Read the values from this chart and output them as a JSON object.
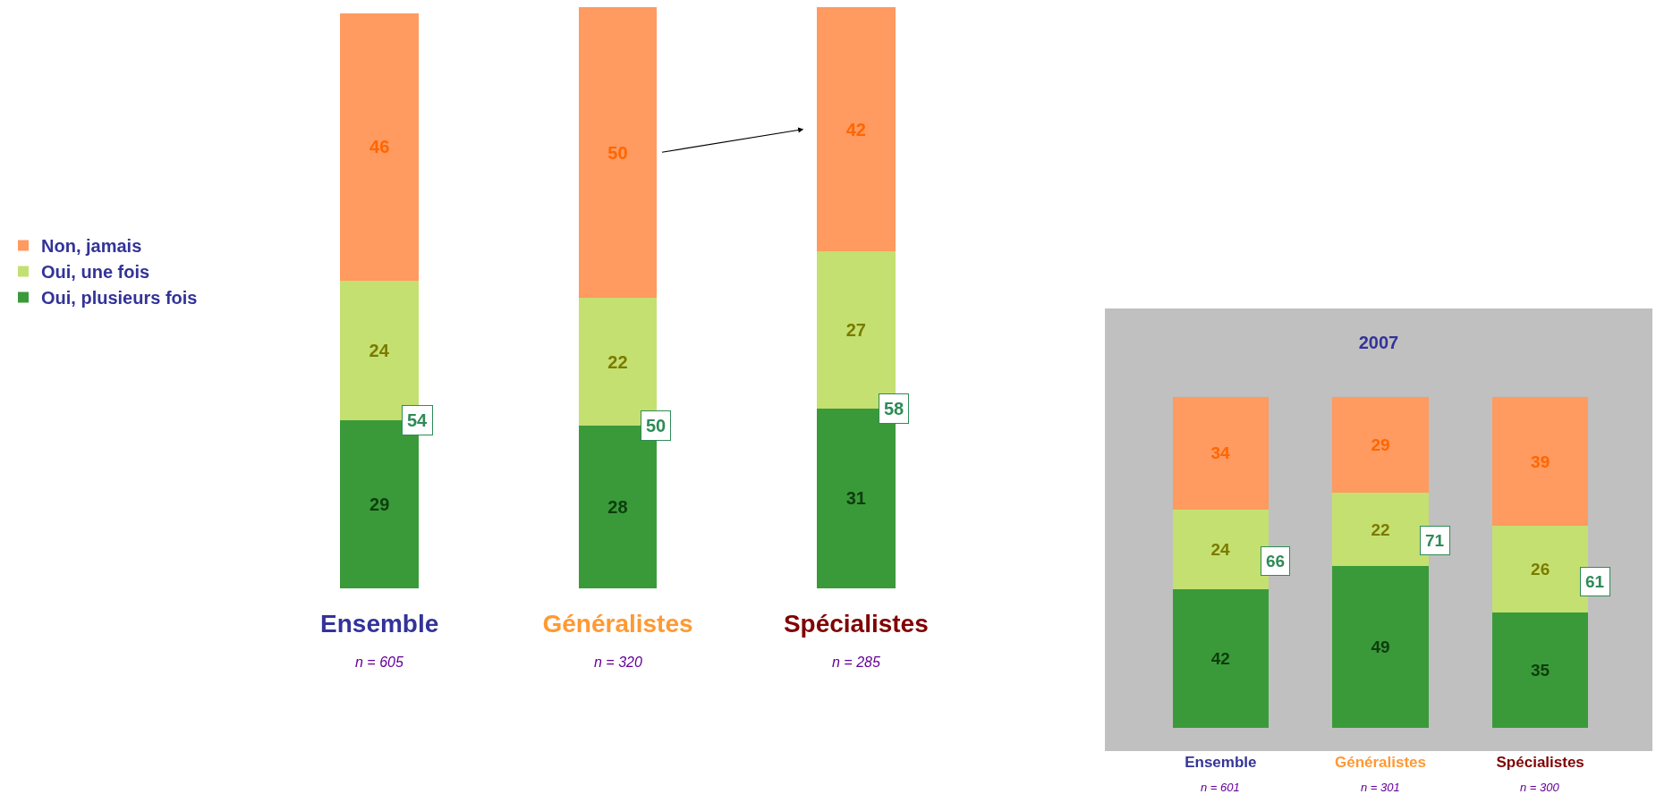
{
  "chart_data": [
    {
      "type": "bar",
      "stacked": true,
      "categories": [
        "Ensemble",
        "Généralistes",
        "Spécialistes"
      ],
      "series": [
        {
          "name": "Oui, plusieurs fois",
          "color": "#3a9a3a",
          "values": [
            29,
            28,
            31
          ]
        },
        {
          "name": "Oui, une fois",
          "color": "#c4e070",
          "values": [
            24,
            22,
            27
          ]
        },
        {
          "name": "Non, jamais",
          "color": "#ff9a60",
          "values": [
            46,
            50,
            42
          ]
        }
      ],
      "data_labels": true,
      "legend": "left",
      "tick_labels": "x",
      "grid": false,
      "annotations": [
        "n = 605",
        "n = 320",
        "n = 285",
        "54",
        "50",
        "58"
      ]
    },
    {
      "type": "bar",
      "stacked": true,
      "title": "2007",
      "categories": [
        "Ensemble",
        "Généralistes",
        "Spécialistes"
      ],
      "series": [
        {
          "color": "#3a9a3a",
          "values": [
            42,
            49,
            35
          ]
        },
        {
          "color": "#c4e070",
          "values": [
            24,
            22,
            26
          ]
        },
        {
          "color": "#ff9a60",
          "values": [
            34,
            29,
            39
          ]
        }
      ],
      "data_labels": true,
      "legend": false,
      "tick_labels": "x",
      "grid": false,
      "annotations": [
        "n = 601",
        "n = 301",
        "n = 300",
        "66",
        "71",
        "61"
      ]
    }
  ]
}
